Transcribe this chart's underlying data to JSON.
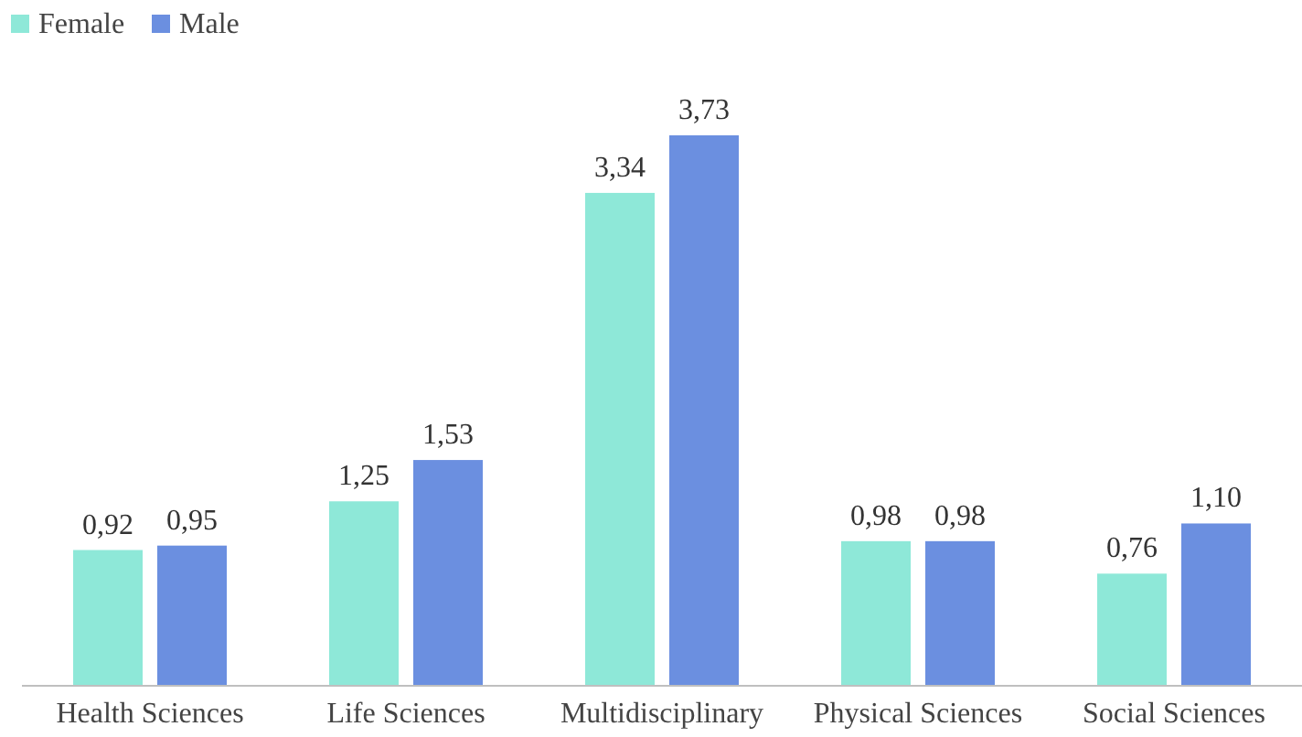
{
  "chart_data": {
    "type": "bar",
    "categories": [
      "Health Sciences",
      "Life Sciences",
      "Multidisciplinary",
      "Physical Sciences",
      "Social Sciences"
    ],
    "series": [
      {
        "name": "Female",
        "color": "#8ee8d8",
        "values": [
          0.92,
          1.25,
          3.34,
          0.98,
          0.76
        ],
        "value_labels": [
          "0,92",
          "1,25",
          "3,34",
          "0,98",
          "0,76"
        ]
      },
      {
        "name": "Male",
        "color": "#6b8fe0",
        "values": [
          0.95,
          1.53,
          3.73,
          0.98,
          1.1
        ],
        "value_labels": [
          "0,95",
          "1,53",
          "3,73",
          "0,98",
          "1,10"
        ]
      }
    ],
    "legend": "top left"
  }
}
